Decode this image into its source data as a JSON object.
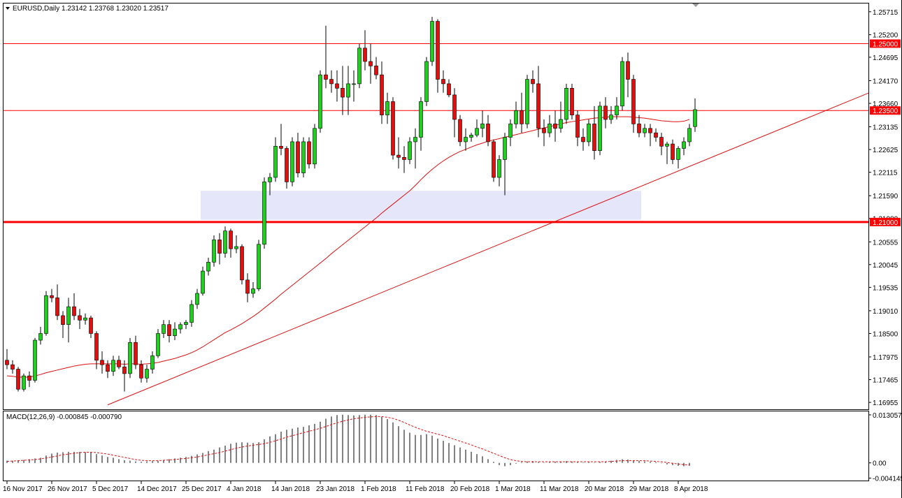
{
  "header": {
    "symbol_line": "EURUSD,Daily  1.23142 1.23768 1.23020 1.23517",
    "macd_line": "MACD(12,26,9) -0.000845 -0.000790"
  },
  "colors": {
    "bull": "#22cc22",
    "bear": "#dd1111",
    "candle_outline": "#000000",
    "level_line": "#ff0000",
    "ma_line": "#dd1111",
    "trend_line": "#dd1111",
    "zone_fill": "#e6e6fa",
    "macd_signal": "#dd1111",
    "macd_hist": "#000000"
  },
  "chart_data": {
    "type": "candlestick",
    "symbol": "EURUSD",
    "timeframe": "Daily",
    "ylim": [
      1.168,
      1.259
    ],
    "y_ticks": [
      "1.25715",
      "1.25200",
      "1.24695",
      "1.24170",
      "1.23660",
      "1.23135",
      "1.22625",
      "1.22115",
      "1.21590",
      "1.21080",
      "1.20555",
      "1.20045",
      "1.19535",
      "1.19010",
      "1.18500",
      "1.17975",
      "1.17465",
      "1.16955"
    ],
    "x_labels": [
      {
        "i": 0,
        "label": "16 Nov 2017"
      },
      {
        "i": 8,
        "label": "26 Nov 2017"
      },
      {
        "i": 16,
        "label": "5 Dec 2017"
      },
      {
        "i": 24,
        "label": "14 Dec 2017"
      },
      {
        "i": 32,
        "label": "25 Dec 2017"
      },
      {
        "i": 40,
        "label": "4 Jan 2018"
      },
      {
        "i": 48,
        "label": "14 Jan 2018"
      },
      {
        "i": 56,
        "label": "23 Jan 2018"
      },
      {
        "i": 64,
        "label": "1 Feb 2018"
      },
      {
        "i": 72,
        "label": "11 Feb 2018"
      },
      {
        "i": 80,
        "label": "20 Feb 2018"
      },
      {
        "i": 88,
        "label": "1 Mar 2018"
      },
      {
        "i": 96,
        "label": "11 Mar 2018"
      },
      {
        "i": 104,
        "label": "20 Mar 2018"
      },
      {
        "i": 112,
        "label": "29 Mar 2018"
      },
      {
        "i": 120,
        "label": "8 Apr 2018"
      }
    ],
    "ohlc": [
      [
        1.179,
        1.1815,
        1.177,
        1.178
      ],
      [
        1.178,
        1.179,
        1.176,
        1.177
      ],
      [
        1.177,
        1.1775,
        1.172,
        1.1725
      ],
      [
        1.1725,
        1.176,
        1.172,
        1.1755
      ],
      [
        1.1755,
        1.1765,
        1.173,
        1.1745
      ],
      [
        1.1745,
        1.184,
        1.174,
        1.1835
      ],
      [
        1.1835,
        1.1865,
        1.1825,
        1.185
      ],
      [
        1.185,
        1.1945,
        1.1845,
        1.1935
      ],
      [
        1.1935,
        1.195,
        1.192,
        1.193
      ],
      [
        1.193,
        1.196,
        1.188,
        1.189
      ],
      [
        1.189,
        1.19,
        1.184,
        1.187
      ],
      [
        1.187,
        1.193,
        1.183,
        1.191
      ],
      [
        1.191,
        1.194,
        1.188,
        1.189
      ],
      [
        1.189,
        1.1905,
        1.186,
        1.188
      ],
      [
        1.188,
        1.1895,
        1.187,
        1.1885
      ],
      [
        1.1885,
        1.189,
        1.184,
        1.185
      ],
      [
        1.185,
        1.1855,
        1.177,
        1.179
      ],
      [
        1.179,
        1.181,
        1.176,
        1.178
      ],
      [
        1.178,
        1.179,
        1.175,
        1.1765
      ],
      [
        1.1765,
        1.18,
        1.1755,
        1.179
      ],
      [
        1.179,
        1.18,
        1.177,
        1.1775
      ],
      [
        1.1775,
        1.179,
        1.172,
        1.176
      ],
      [
        1.176,
        1.184,
        1.175,
        1.183
      ],
      [
        1.183,
        1.1845,
        1.177,
        1.178
      ],
      [
        1.178,
        1.179,
        1.174,
        1.175
      ],
      [
        1.175,
        1.178,
        1.174,
        1.177
      ],
      [
        1.177,
        1.181,
        1.176,
        1.18
      ],
      [
        1.18,
        1.186,
        1.1795,
        1.185
      ],
      [
        1.185,
        1.188,
        1.184,
        1.187
      ],
      [
        1.187,
        1.188,
        1.183,
        1.1845
      ],
      [
        1.1845,
        1.1875,
        1.1835,
        1.186
      ],
      [
        1.186,
        1.1875,
        1.185,
        1.187
      ],
      [
        1.187,
        1.188,
        1.186,
        1.1875
      ],
      [
        1.1875,
        1.1925,
        1.1865,
        1.1915
      ],
      [
        1.1915,
        1.195,
        1.1905,
        1.194
      ],
      [
        1.194,
        1.2,
        1.1935,
        1.199
      ],
      [
        1.199,
        1.202,
        1.198,
        1.201
      ],
      [
        1.201,
        1.207,
        1.2,
        1.206
      ],
      [
        1.206,
        1.2075,
        1.2005,
        1.203
      ],
      [
        1.203,
        1.209,
        1.202,
        1.208
      ],
      [
        1.208,
        1.2085,
        1.202,
        1.204
      ],
      [
        1.204,
        1.207,
        1.203,
        1.2045
      ],
      [
        1.2045,
        1.205,
        1.196,
        1.197
      ],
      [
        1.197,
        1.1985,
        1.192,
        1.194
      ],
      [
        1.194,
        1.1965,
        1.193,
        1.195
      ],
      [
        1.195,
        1.206,
        1.1945,
        1.205
      ],
      [
        1.205,
        1.22,
        1.204,
        1.219
      ],
      [
        1.219,
        1.221,
        1.216,
        1.22
      ],
      [
        1.22,
        1.229,
        1.219,
        1.227
      ],
      [
        1.227,
        1.232,
        1.225,
        1.2265
      ],
      [
        1.2265,
        1.227,
        1.2175,
        1.219
      ],
      [
        1.219,
        1.229,
        1.218,
        1.228
      ],
      [
        1.228,
        1.23,
        1.22,
        1.221
      ],
      [
        1.221,
        1.229,
        1.22,
        1.228
      ],
      [
        1.228,
        1.229,
        1.222,
        1.223
      ],
      [
        1.223,
        1.232,
        1.222,
        1.231
      ],
      [
        1.231,
        1.244,
        1.23,
        1.243
      ],
      [
        1.243,
        1.254,
        1.24,
        1.242
      ],
      [
        1.242,
        1.244,
        1.239,
        1.241
      ],
      [
        1.241,
        1.244,
        1.237,
        1.24
      ],
      [
        1.24,
        1.245,
        1.234,
        1.238
      ],
      [
        1.238,
        1.245,
        1.234,
        1.241
      ],
      [
        1.241,
        1.244,
        1.237,
        1.241
      ],
      [
        1.241,
        1.25,
        1.24,
        1.249
      ],
      [
        1.249,
        1.253,
        1.244,
        1.246
      ],
      [
        1.246,
        1.25,
        1.241,
        1.245
      ],
      [
        1.245,
        1.247,
        1.242,
        1.243
      ],
      [
        1.243,
        1.246,
        1.232,
        1.234
      ],
      [
        1.234,
        1.239,
        1.232,
        1.237
      ],
      [
        1.237,
        1.238,
        1.224,
        1.225
      ],
      [
        1.225,
        1.229,
        1.222,
        1.2245
      ],
      [
        1.2245,
        1.227,
        1.221,
        1.224
      ],
      [
        1.224,
        1.229,
        1.223,
        1.228
      ],
      [
        1.228,
        1.231,
        1.222,
        1.229
      ],
      [
        1.229,
        1.238,
        1.226,
        1.237
      ],
      [
        1.237,
        1.247,
        1.236,
        1.246
      ],
      [
        1.246,
        1.256,
        1.245,
        1.255
      ],
      [
        1.255,
        1.2555,
        1.239,
        1.242
      ],
      [
        1.242,
        1.244,
        1.239,
        1.241
      ],
      [
        1.241,
        1.242,
        1.238,
        1.2385
      ],
      [
        1.2385,
        1.24,
        1.229,
        1.233
      ],
      [
        1.233,
        1.234,
        1.227,
        1.228
      ],
      [
        1.228,
        1.231,
        1.226,
        1.229
      ],
      [
        1.229,
        1.23,
        1.228,
        1.2295
      ],
      [
        1.2295,
        1.233,
        1.229,
        1.231
      ],
      [
        1.231,
        1.235,
        1.229,
        1.232
      ],
      [
        1.232,
        1.234,
        1.227,
        1.228
      ],
      [
        1.228,
        1.2285,
        1.219,
        1.22
      ],
      [
        1.22,
        1.225,
        1.218,
        1.224
      ],
      [
        1.224,
        1.23,
        1.216,
        1.229
      ],
      [
        1.229,
        1.233,
        1.227,
        1.232
      ],
      [
        1.232,
        1.237,
        1.231,
        1.235
      ],
      [
        1.235,
        1.239,
        1.23,
        1.232
      ],
      [
        1.232,
        1.243,
        1.231,
        1.242
      ],
      [
        1.242,
        1.244,
        1.239,
        1.241
      ],
      [
        1.241,
        1.245,
        1.229,
        1.231
      ],
      [
        1.231,
        1.233,
        1.227,
        1.23
      ],
      [
        1.23,
        1.234,
        1.229,
        1.232
      ],
      [
        1.232,
        1.235,
        1.228,
        1.231
      ],
      [
        1.231,
        1.237,
        1.23,
        1.233
      ],
      [
        1.233,
        1.241,
        1.232,
        1.24
      ],
      [
        1.24,
        1.241,
        1.233,
        1.234
      ],
      [
        1.234,
        1.235,
        1.227,
        1.229
      ],
      [
        1.229,
        1.231,
        1.226,
        1.228
      ],
      [
        1.228,
        1.233,
        1.227,
        1.232
      ],
      [
        1.232,
        1.236,
        1.224,
        1.226
      ],
      [
        1.226,
        1.237,
        1.225,
        1.236
      ],
      [
        1.236,
        1.238,
        1.231,
        1.233
      ],
      [
        1.233,
        1.236,
        1.232,
        1.234
      ],
      [
        1.234,
        1.238,
        1.233,
        1.236
      ],
      [
        1.236,
        1.247,
        1.235,
        1.246
      ],
      [
        1.246,
        1.248,
        1.238,
        1.242
      ],
      [
        1.242,
        1.243,
        1.23,
        1.232
      ],
      [
        1.232,
        1.234,
        1.229,
        1.23
      ],
      [
        1.23,
        1.232,
        1.229,
        1.231
      ],
      [
        1.231,
        1.232,
        1.227,
        1.23
      ],
      [
        1.23,
        1.231,
        1.228,
        1.229
      ],
      [
        1.229,
        1.23,
        1.225,
        1.227
      ],
      [
        1.227,
        1.228,
        1.223,
        1.2275
      ],
      [
        1.2275,
        1.2285,
        1.223,
        1.224
      ],
      [
        1.224,
        1.227,
        1.222,
        1.2265
      ],
      [
        1.2265,
        1.229,
        1.225,
        1.228
      ],
      [
        1.228,
        1.232,
        1.227,
        1.231
      ],
      [
        1.2314,
        1.2377,
        1.2302,
        1.2352
      ]
    ],
    "moving_average": [
      1.1755,
      1.1754,
      1.1752,
      1.1752,
      1.1752,
      1.1755,
      1.1758,
      1.1762,
      1.1765,
      1.1768,
      1.1771,
      1.1774,
      1.1777,
      1.1779,
      1.1781,
      1.1782,
      1.1782,
      1.1782,
      1.1782,
      1.1782,
      1.1782,
      1.1781,
      1.1782,
      1.1782,
      1.1781,
      1.1782,
      1.1783,
      1.1785,
      1.1788,
      1.1791,
      1.1794,
      1.1798,
      1.1802,
      1.1807,
      1.1813,
      1.182,
      1.1828,
      1.1836,
      1.1844,
      1.1852,
      1.1858,
      1.1865,
      1.1872,
      1.188,
      1.1888,
      1.1897,
      1.1907,
      1.1917,
      1.1927,
      1.1938,
      1.1948,
      1.1958,
      1.1968,
      1.1978,
      1.1988,
      1.1998,
      1.2008,
      1.2018,
      1.2029,
      1.2039,
      1.2049,
      1.2059,
      1.2069,
      1.2079,
      1.2089,
      1.2099,
      1.2109,
      1.212,
      1.213,
      1.214,
      1.215,
      1.216,
      1.217,
      1.2182,
      1.2195,
      1.2207,
      1.2218,
      1.2228,
      1.2237,
      1.2245,
      1.2252,
      1.2258,
      1.2263,
      1.2268,
      1.2273,
      1.2277,
      1.2281,
      1.2284,
      1.2287,
      1.229,
      1.2293,
      1.2296,
      1.2299,
      1.2302,
      1.2305,
      1.2308,
      1.2311,
      1.2314,
      1.2317,
      1.232,
      1.2323,
      1.2325,
      1.2327,
      1.2329,
      1.2331,
      1.2333,
      1.2334,
      1.2335,
      1.2336,
      1.2336,
      1.2336,
      1.2336,
      1.2335,
      1.2334,
      1.2333,
      1.2331,
      1.2329,
      1.2327,
      1.2326,
      1.2325,
      1.2325,
      1.2326,
      1.233
    ],
    "levels": [
      {
        "price": 1.25,
        "label": "1.25000",
        "width": 1
      },
      {
        "price": 1.235,
        "label": "1.23500",
        "width": 1
      },
      {
        "price": 1.21,
        "label": "1.21000",
        "width": 3
      }
    ],
    "trendline": {
      "from": {
        "i": 18,
        "price": 1.169
      },
      "to": {
        "i": 160,
        "price": 1.242
      }
    },
    "zone": {
      "from_i": 35,
      "to_i": 113,
      "top": 1.217,
      "bottom": 1.2105
    },
    "macd": {
      "ylim": [
        -0.0048,
        0.014
      ],
      "y_ticks": [
        "0.013057",
        "0.00",
        "-0.004145"
      ],
      "histogram": [
        0.0006,
        0.0006,
        0.0007,
        0.0008,
        0.001,
        0.0012,
        0.0014,
        0.002,
        0.0025,
        0.0028,
        0.0029,
        0.003,
        0.003,
        0.003,
        0.0029,
        0.0028,
        0.0024,
        0.002,
        0.0016,
        0.0014,
        0.001,
        0.0007,
        0.0006,
        0.0004,
        0.0003,
        0.0004,
        0.0005,
        0.0006,
        0.0008,
        0.001,
        0.0012,
        0.0014,
        0.0016,
        0.0019,
        0.0023,
        0.0027,
        0.0032,
        0.0036,
        0.0042,
        0.0047,
        0.0052,
        0.0055,
        0.0056,
        0.0055,
        0.0054,
        0.0056,
        0.0064,
        0.0072,
        0.0078,
        0.0085,
        0.009,
        0.0093,
        0.0096,
        0.0098,
        0.0102,
        0.0106,
        0.0112,
        0.012,
        0.0126,
        0.013,
        0.0131,
        0.013,
        0.0129,
        0.013,
        0.0131,
        0.0131,
        0.013,
        0.0125,
        0.0119,
        0.011,
        0.01,
        0.009,
        0.0082,
        0.0076,
        0.0076,
        0.0078,
        0.0074,
        0.0066,
        0.006,
        0.0054,
        0.0048,
        0.0042,
        0.0036,
        0.003,
        0.0024,
        0.0018,
        0.001,
        0.0003,
        -0.0006,
        -0.0009,
        -0.0006,
        -0.0002,
        0.0002,
        0.0004,
        0.0005,
        0.0002,
        0.0001,
        0.0002,
        0.0003,
        0.0004,
        0.0005,
        0.0004,
        0.0002,
        0.0001,
        0.0002,
        0.0001,
        0.0003,
        0.0004,
        0.0006,
        0.0008,
        0.001,
        0.0009,
        0.0007,
        0.0005,
        0.0004,
        0.0003,
        0.0002,
        -0.0001,
        -0.0004,
        -0.0006,
        -0.0008,
        -0.0009,
        -0.0008
      ],
      "signal": [
        0.0004,
        0.0005,
        0.0006,
        0.0007,
        0.0008,
        0.0009,
        0.0011,
        0.0013,
        0.0016,
        0.0019,
        0.0022,
        0.0024,
        0.0026,
        0.0028,
        0.0029,
        0.0029,
        0.0028,
        0.0026,
        0.0024,
        0.0021,
        0.0018,
        0.0015,
        0.0012,
        0.0009,
        0.0007,
        0.0006,
        0.0006,
        0.0006,
        0.0007,
        0.0008,
        0.0009,
        0.0011,
        0.0012,
        0.0014,
        0.0016,
        0.0019,
        0.0022,
        0.0025,
        0.0028,
        0.0032,
        0.0036,
        0.004,
        0.0043,
        0.0046,
        0.0048,
        0.005,
        0.0052,
        0.0056,
        0.006,
        0.0065,
        0.007,
        0.0074,
        0.0078,
        0.0082,
        0.0086,
        0.009,
        0.0094,
        0.0099,
        0.0104,
        0.0109,
        0.0113,
        0.0117,
        0.012,
        0.0122,
        0.0124,
        0.0125,
        0.0126,
        0.0126,
        0.0124,
        0.0121,
        0.0116,
        0.011,
        0.0103,
        0.0097,
        0.0091,
        0.0086,
        0.0082,
        0.0078,
        0.0074,
        0.0069,
        0.0064,
        0.0059,
        0.0054,
        0.0049,
        0.0043,
        0.0038,
        0.0032,
        0.0026,
        0.002,
        0.0014,
        0.0009,
        0.0006,
        0.0004,
        0.0003,
        0.0003,
        0.0003,
        0.0003,
        0.0003,
        0.0003,
        0.0003,
        0.0003,
        0.0003,
        0.0003,
        0.0003,
        0.0003,
        0.0003,
        0.0003,
        0.0003,
        0.0004,
        0.0005,
        0.0006,
        0.0006,
        0.0006,
        0.0006,
        0.0006,
        0.0005,
        0.0004,
        0.0003,
        0.0001,
        -0.0001,
        -0.0003,
        -0.0005,
        -0.0006
      ]
    }
  }
}
